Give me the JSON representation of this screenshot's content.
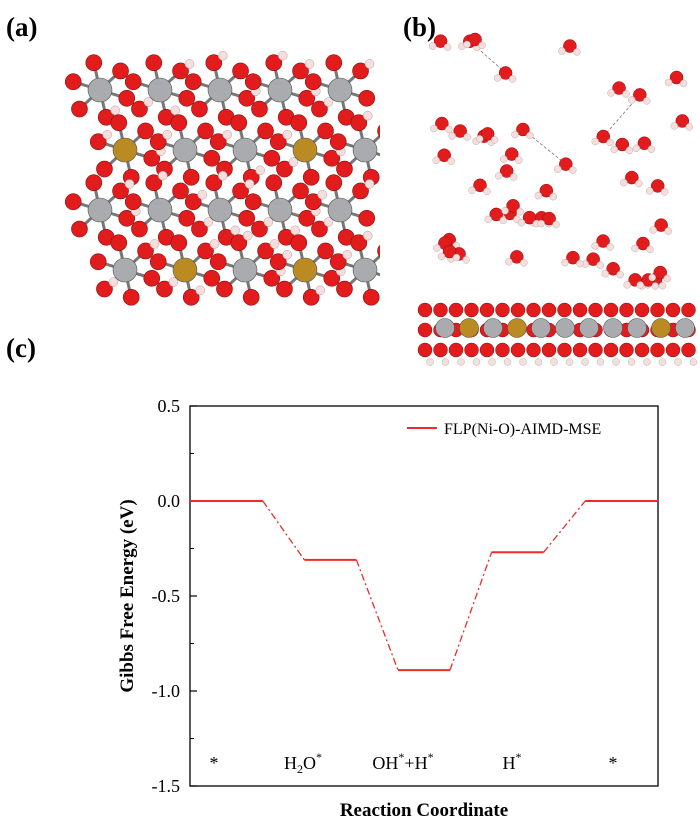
{
  "panels": {
    "a": "(a)",
    "b": "(b)",
    "c": "(c)"
  },
  "colors": {
    "line": "#ee2b2b",
    "oxygen": "#e21c1c",
    "hydrogen": "#f4dede",
    "nickel": "#a9abae",
    "iron": "#b98b22",
    "bond": "#777777"
  },
  "chart_data": {
    "type": "line",
    "title": "",
    "xlabel": "Reaction Coordinate",
    "ylabel": "Gibbs Free Energy (eV)",
    "ylim": [
      -1.5,
      0.5
    ],
    "yticks": [
      "0.5",
      "0.0",
      "-0.5",
      "-1.0",
      "-1.5"
    ],
    "ytick_values": [
      0.5,
      0.0,
      -0.5,
      -1.0,
      -1.5
    ],
    "states": [
      "*",
      "H2O*",
      "OH*+H*",
      "H*",
      "*"
    ],
    "series": [
      {
        "name": "FLP(Ni-O)-AIMD-MSE",
        "values": [
          0.0,
          -0.31,
          -0.89,
          -0.27,
          0.0
        ]
      }
    ],
    "legend_position": "top-right",
    "grid": false
  }
}
